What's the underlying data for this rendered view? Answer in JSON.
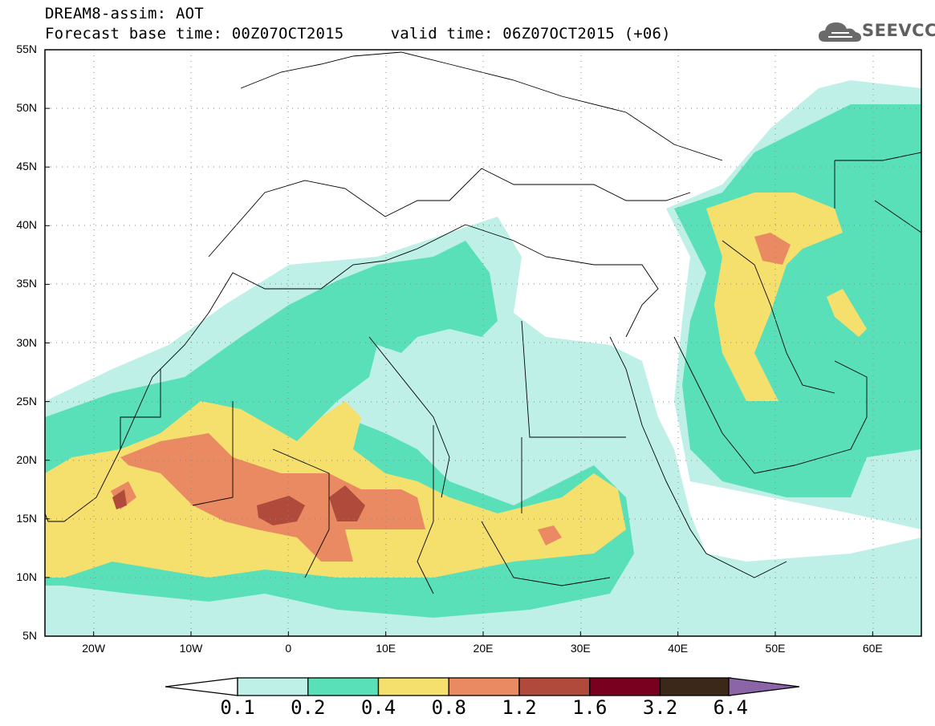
{
  "header": {
    "line1": "DREAM8-assim: AOT",
    "line2": "Forecast base time: 00Z07OCT2015     valid time: 06Z07OCT2015 (+06)"
  },
  "logo": {
    "text": "SEEVCCC",
    "icon": "cloud-icon"
  },
  "map": {
    "projection": "equirectangular",
    "lon_range": [
      -25,
      65
    ],
    "lat_range": [
      5,
      55
    ],
    "graticule": "dotted",
    "lat_ticks": [
      "55N",
      "50N",
      "45N",
      "40N",
      "35N",
      "30N",
      "25N",
      "20N",
      "15N",
      "10N",
      "5N"
    ],
    "lon_ticks": [
      "20W",
      "10W",
      "0",
      "10E",
      "20E",
      "30E",
      "40E",
      "50E",
      "60E"
    ]
  },
  "colorbar": {
    "labels": [
      "0.1",
      "0.2",
      "0.4",
      "0.8",
      "1.2",
      "1.6",
      "3.2",
      "6.4"
    ],
    "colors": [
      "#bff0e8",
      "#5ae0b8",
      "#f5e06e",
      "#e98a62",
      "#b04a3a",
      "#7a0020",
      "#3c2818",
      "#8c64a8"
    ],
    "under_color": "#ffffff"
  }
}
